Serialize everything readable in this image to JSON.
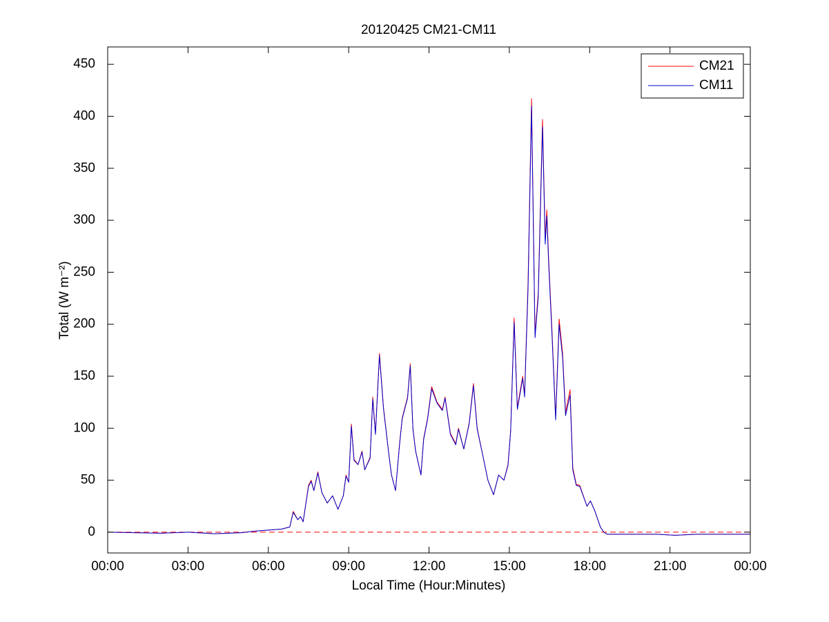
{
  "chart_data": {
    "type": "line",
    "title": "20120425 CM21-CM11",
    "x_label": "Local Time (Hour:Minutes)",
    "y_label": "Total (W m⁻²)",
    "xlim": [
      0,
      24
    ],
    "xticks": [
      {
        "value": 0,
        "label": "00:00"
      },
      {
        "value": 3,
        "label": "03:00"
      },
      {
        "value": 6,
        "label": "06:00"
      },
      {
        "value": 9,
        "label": "09:00"
      },
      {
        "value": 12,
        "label": "12:00"
      },
      {
        "value": 15,
        "label": "15:00"
      },
      {
        "value": 18,
        "label": "18:00"
      },
      {
        "value": 21,
        "label": "21:00"
      },
      {
        "value": 24,
        "label": "00:00"
      }
    ],
    "ylim": [
      -20,
      466.7
    ],
    "yticks": [
      0,
      50,
      100,
      150,
      200,
      250,
      300,
      350,
      400,
      450
    ],
    "grid": false,
    "legend": "upper right",
    "reference_line": {
      "value": 0,
      "color": "#ff0000",
      "style": "dashed"
    },
    "x": [
      0,
      1,
      2,
      3,
      4,
      5,
      5.5,
      6,
      6.5,
      6.8,
      6.93,
      7.1,
      7.2,
      7.3,
      7.5,
      7.6,
      7.7,
      7.85,
      8.0,
      8.2,
      8.4,
      8.6,
      8.8,
      8.9,
      9.0,
      9.1,
      9.2,
      9.35,
      9.5,
      9.6,
      9.8,
      9.9,
      10.0,
      10.15,
      10.3,
      10.5,
      10.6,
      10.75,
      10.9,
      11.0,
      11.2,
      11.3,
      11.4,
      11.5,
      11.7,
      11.8,
      11.95,
      12.1,
      12.3,
      12.5,
      12.6,
      12.8,
      13.0,
      13.1,
      13.3,
      13.5,
      13.66,
      13.8,
      14.0,
      14.2,
      14.41,
      14.6,
      14.8,
      14.95,
      15.05,
      15.18,
      15.3,
      15.5,
      15.57,
      15.7,
      15.83,
      15.96,
      16.08,
      16.24,
      16.34,
      16.4,
      16.47,
      16.6,
      16.73,
      16.86,
      16.99,
      17.1,
      17.27,
      17.37,
      17.5,
      17.63,
      17.9,
      18.03,
      18.2,
      18.4,
      18.53,
      18.66,
      19.5,
      20.5,
      21.2,
      22,
      23,
      24
    ],
    "series": [
      {
        "name": "CM21",
        "color": "#ff0000",
        "values": [
          0,
          -0.5,
          -1,
          0,
          -1.5,
          -0.5,
          1,
          2,
          3,
          5,
          20,
          12,
          15,
          10,
          45,
          50,
          40,
          58,
          38,
          28,
          35,
          22,
          35,
          55,
          48,
          104,
          70,
          65,
          78,
          60,
          72,
          130,
          95,
          172,
          120,
          75,
          55,
          40,
          85,
          110,
          130,
          162,
          100,
          78,
          55,
          90,
          110,
          140,
          125,
          118,
          130,
          95,
          85,
          100,
          80,
          105,
          143,
          100,
          75,
          50,
          36,
          55,
          50,
          65,
          98,
          206,
          120,
          150,
          132,
          240,
          417,
          190,
          230,
          397,
          282,
          310,
          262,
          190,
          110,
          205,
          172,
          115,
          137,
          62,
          46,
          45,
          25,
          30,
          20,
          5,
          0,
          -2,
          -2,
          -2,
          -3,
          -2,
          -2,
          -2
        ]
      },
      {
        "name": "CM11",
        "color": "#0000cc",
        "values": [
          0,
          -0.5,
          -1,
          0,
          -1.5,
          -0.5,
          1,
          2,
          3,
          5,
          19,
          12,
          15,
          10,
          44,
          49,
          40,
          57,
          38,
          28,
          35,
          22,
          35,
          54,
          48,
          102,
          69,
          65,
          77,
          60,
          71,
          128,
          94,
          170,
          119,
          75,
          55,
          40,
          84,
          109,
          129,
          160,
          99,
          78,
          55,
          89,
          109,
          138,
          124,
          117,
          129,
          94,
          84,
          99,
          80,
          104,
          141,
          99,
          75,
          50,
          36,
          55,
          50,
          64,
          97,
          202,
          118,
          148,
          130,
          235,
          410,
          187,
          226,
          390,
          277,
          304,
          258,
          186,
          108,
          200,
          168,
          112,
          132,
          60,
          45,
          44,
          25,
          30,
          20,
          5,
          0,
          -2,
          -2,
          -2,
          -3,
          -2,
          -2,
          -2
        ]
      }
    ]
  }
}
